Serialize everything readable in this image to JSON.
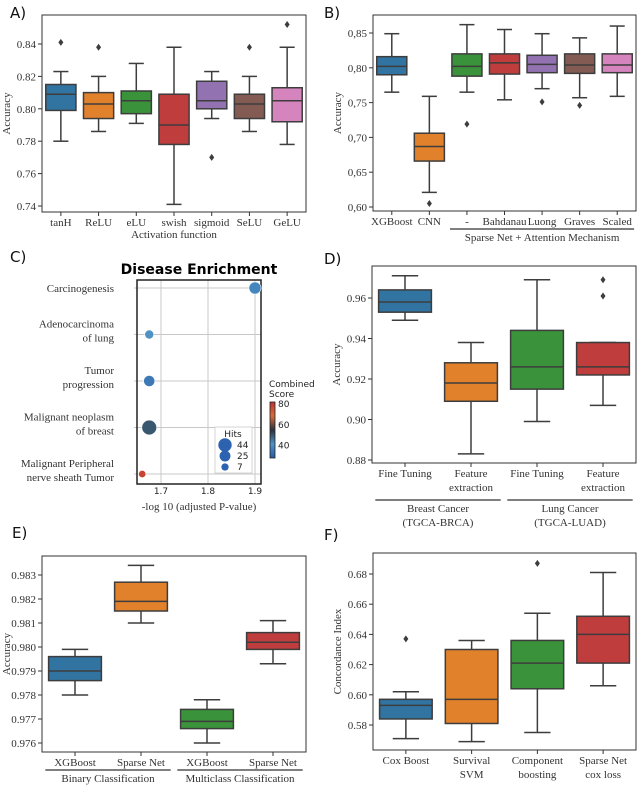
{
  "palette": [
    "#3274a1",
    "#e1812c",
    "#3a923a",
    "#c03d3e",
    "#9372b2",
    "#845b53",
    "#d684bd"
  ],
  "chart_data": [
    {
      "id": "A",
      "panel_label": "A)",
      "type": "box",
      "xlabel": "Activation function",
      "ylabel": "Accuracy",
      "yticks": [
        "0.74",
        "0.76",
        "0.78",
        "0.80",
        "0.82",
        "0.84"
      ],
      "ytick_values": [
        0.74,
        0.76,
        0.78,
        0.8,
        0.82,
        0.84
      ],
      "categories": [
        "tanH",
        "ReLU",
        "eLU",
        "swish",
        "sigmoid",
        "SeLU",
        "GeLU"
      ],
      "boxes": [
        {
          "whislo": 0.78,
          "q1": 0.799,
          "med": 0.809,
          "q3": 0.815,
          "whishi": 0.823,
          "fliers": [
            0.841
          ]
        },
        {
          "whislo": 0.786,
          "q1": 0.794,
          "med": 0.803,
          "q3": 0.81,
          "whishi": 0.82,
          "fliers": [
            0.838
          ]
        },
        {
          "whislo": 0.791,
          "q1": 0.797,
          "med": 0.805,
          "q3": 0.811,
          "whishi": 0.828,
          "fliers": []
        },
        {
          "whislo": 0.741,
          "q1": 0.778,
          "med": 0.79,
          "q3": 0.809,
          "whishi": 0.838,
          "fliers": []
        },
        {
          "whislo": 0.794,
          "q1": 0.8,
          "med": 0.805,
          "q3": 0.817,
          "whishi": 0.823,
          "fliers": [
            0.77
          ]
        },
        {
          "whislo": 0.786,
          "q1": 0.794,
          "med": 0.803,
          "q3": 0.809,
          "whishi": 0.82,
          "fliers": [
            0.838
          ]
        },
        {
          "whislo": 0.778,
          "q1": 0.792,
          "med": 0.805,
          "q3": 0.813,
          "whishi": 0.838,
          "fliers": [
            0.852
          ]
        }
      ]
    },
    {
      "id": "B",
      "panel_label": "B)",
      "type": "box",
      "xlabel": "",
      "ylabel": "Accuracy",
      "yticks": [
        "0,60",
        "0,65",
        "0,70",
        "0,75",
        "0,80",
        "0,85"
      ],
      "ytick_values": [
        0.6,
        0.65,
        0.7,
        0.75,
        0.8,
        0.85
      ],
      "categories": [
        "XGBoost",
        "CNN",
        "-",
        "Bahdanau",
        "Luong",
        "Graves",
        "Scaled"
      ],
      "groups": [
        {
          "label": "Sparse Net + Attention Mechanism",
          "from": 2,
          "to": 6
        }
      ],
      "boxes": [
        {
          "whislo": 0.765,
          "q1": 0.79,
          "med": 0.802,
          "q3": 0.816,
          "whishi": 0.849,
          "fliers": []
        },
        {
          "whislo": 0.621,
          "q1": 0.666,
          "med": 0.687,
          "q3": 0.706,
          "whishi": 0.759,
          "fliers": [
            0.605
          ]
        },
        {
          "whislo": 0.765,
          "q1": 0.788,
          "med": 0.802,
          "q3": 0.82,
          "whishi": 0.862,
          "fliers": [
            0.719
          ]
        },
        {
          "whislo": 0.754,
          "q1": 0.791,
          "med": 0.807,
          "q3": 0.82,
          "whishi": 0.855,
          "fliers": []
        },
        {
          "whislo": 0.77,
          "q1": 0.793,
          "med": 0.805,
          "q3": 0.818,
          "whishi": 0.849,
          "fliers": [
            0.751
          ]
        },
        {
          "whislo": 0.757,
          "q1": 0.792,
          "med": 0.804,
          "q3": 0.82,
          "whishi": 0.843,
          "fliers": [
            0.746
          ]
        },
        {
          "whislo": 0.759,
          "q1": 0.793,
          "med": 0.804,
          "q3": 0.82,
          "whishi": 0.86,
          "fliers": []
        }
      ]
    },
    {
      "id": "C",
      "panel_label": "C)",
      "type": "scatter",
      "title": "Disease Enrichment",
      "xlabel": "-log 10 (adjusted P-value)",
      "xticks": [
        "1.7",
        "1.8",
        "1.9"
      ],
      "xtick_values": [
        1.7,
        1.8,
        1.9
      ],
      "categories": [
        [
          "Carcinogenesis"
        ],
        [
          "Adenocarcinoma",
          "of lung"
        ],
        [
          "Tumor",
          "progression"
        ],
        [
          "Malignant neoplasm",
          "of breast"
        ],
        [
          "Malignant Peripheral",
          "nerve sheath Tumor"
        ]
      ],
      "points": [
        {
          "x": 1.9,
          "hits": 25,
          "score": 38
        },
        {
          "x": 1.675,
          "hits": 10,
          "score": 42
        },
        {
          "x": 1.675,
          "hits": 20,
          "score": 35
        },
        {
          "x": 1.675,
          "hits": 44,
          "score": 50
        },
        {
          "x": 1.66,
          "hits": 5,
          "score": 78
        }
      ],
      "colorbar": {
        "label": [
          "Combined",
          "Score"
        ],
        "ticks": [
          "80",
          "60",
          "40"
        ],
        "tick_values": [
          80,
          60,
          40
        ],
        "range": [
          28,
          82
        ]
      },
      "size_legend": {
        "title": "Hits",
        "entries": [
          "44",
          "25",
          "7"
        ],
        "values": [
          44,
          25,
          7
        ]
      }
    },
    {
      "id": "D",
      "panel_label": "D)",
      "type": "box",
      "xlabel": "",
      "ylabel": "Accuracy",
      "yticks": [
        "0.88",
        "0.90",
        "0.92",
        "0.94",
        "0.96"
      ],
      "ytick_values": [
        0.88,
        0.9,
        0.92,
        0.94,
        0.96
      ],
      "categories": [
        [
          "Fine Tuning"
        ],
        [
          "Feature",
          "extraction"
        ],
        [
          "Fine Tuning"
        ],
        [
          "Feature",
          "extraction"
        ]
      ],
      "groups": [
        {
          "label": [
            "Breast  Cancer",
            "(TGCA-BRCA)"
          ],
          "from": 0,
          "to": 1
        },
        {
          "label": [
            "Lung  Cancer",
            "(TGCA-LUAD)"
          ],
          "from": 2,
          "to": 3
        }
      ],
      "boxes": [
        {
          "whislo": 0.949,
          "q1": 0.953,
          "med": 0.958,
          "q3": 0.964,
          "whishi": 0.971,
          "fliers": []
        },
        {
          "whislo": 0.883,
          "q1": 0.909,
          "med": 0.918,
          "q3": 0.928,
          "whishi": 0.938,
          "fliers": []
        },
        {
          "whislo": 0.899,
          "q1": 0.915,
          "med": 0.926,
          "q3": 0.944,
          "whishi": 0.969,
          "fliers": []
        },
        {
          "whislo": 0.907,
          "q1": 0.922,
          "med": 0.926,
          "q3": 0.938,
          "whishi": 0.938,
          "fliers": [
            0.961,
            0.969
          ]
        }
      ]
    },
    {
      "id": "E",
      "panel_label": "E)",
      "type": "box",
      "xlabel": "",
      "ylabel": "Accuracy",
      "yticks": [
        "0.976",
        "0.977",
        "0.978",
        "0.979",
        "0.980",
        "0.981",
        "0.982",
        "0.983"
      ],
      "ytick_values": [
        0.976,
        0.977,
        0.978,
        0.979,
        0.98,
        0.981,
        0.982,
        0.983
      ],
      "categories": [
        "XGBoost",
        "Sparse Net",
        "XGBoost",
        "Sparse Net"
      ],
      "groups": [
        {
          "label": "Binary Classification",
          "from": 0,
          "to": 1
        },
        {
          "label": "Multiclass Classification",
          "from": 2,
          "to": 3
        }
      ],
      "boxes": [
        {
          "whislo": 0.978,
          "q1": 0.9786,
          "med": 0.979,
          "q3": 0.9796,
          "whishi": 0.9799,
          "fliers": []
        },
        {
          "whislo": 0.981,
          "q1": 0.9815,
          "med": 0.9819,
          "q3": 0.9827,
          "whishi": 0.9834,
          "fliers": []
        },
        {
          "whislo": 0.976,
          "q1": 0.9766,
          "med": 0.9769,
          "q3": 0.9774,
          "whishi": 0.9778,
          "fliers": []
        },
        {
          "whislo": 0.9793,
          "q1": 0.9799,
          "med": 0.9802,
          "q3": 0.9806,
          "whishi": 0.9811,
          "fliers": []
        }
      ]
    },
    {
      "id": "F",
      "panel_label": "F)",
      "type": "box",
      "xlabel": "",
      "ylabel": "Concordance Index",
      "yticks": [
        "0.58",
        "0.60",
        "0.62",
        "0.64",
        "0.66",
        "0.68"
      ],
      "ytick_values": [
        0.58,
        0.6,
        0.62,
        0.64,
        0.66,
        0.68
      ],
      "categories": [
        [
          "Cox Boost"
        ],
        [
          "Survival",
          "SVM"
        ],
        [
          "Component",
          "boosting"
        ],
        [
          "Sparse Net",
          "cox loss"
        ]
      ],
      "boxes": [
        {
          "whislo": 0.571,
          "q1": 0.584,
          "med": 0.593,
          "q3": 0.597,
          "whishi": 0.602,
          "fliers": [
            0.637
          ]
        },
        {
          "whislo": 0.569,
          "q1": 0.581,
          "med": 0.597,
          "q3": 0.63,
          "whishi": 0.636,
          "fliers": []
        },
        {
          "whislo": 0.575,
          "q1": 0.604,
          "med": 0.621,
          "q3": 0.636,
          "whishi": 0.654,
          "fliers": [
            0.687
          ]
        },
        {
          "whislo": 0.606,
          "q1": 0.621,
          "med": 0.64,
          "q3": 0.652,
          "whishi": 0.681,
          "fliers": []
        }
      ]
    }
  ]
}
